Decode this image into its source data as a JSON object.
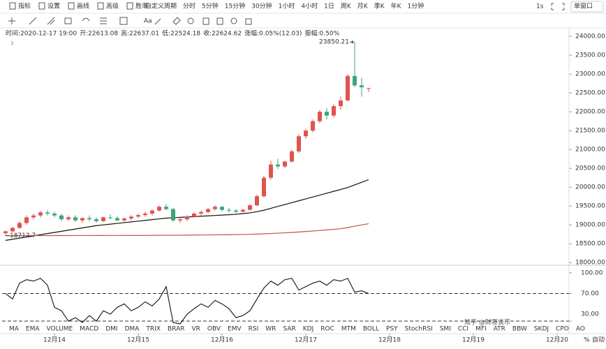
{
  "toolbar": {
    "tools": [
      "指标",
      "设置",
      "画线",
      "高级",
      "胜率"
    ],
    "periods": [
      "自定义周期",
      "分时",
      "5分钟",
      "15分钟",
      "30分钟",
      "1小时",
      "4小时",
      "1日",
      "周K",
      "月K",
      "季K",
      "年K",
      "1分钟"
    ],
    "active_period": "1小时",
    "right": [
      "1s",
      "单窗口"
    ]
  },
  "info": [
    "时间:2020-12-17 19:00",
    "开:22613.08",
    "高:22637.01",
    "低:22524.18",
    "收:22624.62",
    "涨幅:0.05%(12.03)",
    "振幅:0.50%"
  ],
  "chart_data": {
    "type": "candlestick",
    "ohlc": [
      [
        18780,
        18850,
        18712.7,
        18830
      ],
      [
        18830,
        18950,
        18800,
        18920
      ],
      [
        18920,
        19100,
        18900,
        19050
      ],
      [
        19050,
        19250,
        19000,
        19200
      ],
      [
        19200,
        19300,
        19150,
        19250
      ],
      [
        19250,
        19380,
        19200,
        19330
      ],
      [
        19330,
        19400,
        19250,
        19300
      ],
      [
        19300,
        19350,
        19200,
        19250
      ],
      [
        19250,
        19300,
        19100,
        19150
      ],
      [
        19150,
        19250,
        19100,
        19200
      ],
      [
        19200,
        19260,
        19080,
        19120
      ],
      [
        19120,
        19200,
        19050,
        19180
      ],
      [
        19180,
        19250,
        19100,
        19150
      ],
      [
        19150,
        19200,
        19060,
        19100
      ],
      [
        19100,
        19220,
        19080,
        19200
      ],
      [
        19200,
        19280,
        19150,
        19180
      ],
      [
        19180,
        19230,
        19100,
        19120
      ],
      [
        19120,
        19200,
        19080,
        19170
      ],
      [
        19170,
        19260,
        19120,
        19220
      ],
      [
        19220,
        19300,
        19180,
        19260
      ],
      [
        19260,
        19350,
        19220,
        19300
      ],
      [
        19300,
        19420,
        19250,
        19380
      ],
      [
        19380,
        19520,
        19350,
        19480
      ],
      [
        19480,
        19550,
        19380,
        19420
      ],
      [
        19420,
        19450,
        19080,
        19120
      ],
      [
        19120,
        19200,
        19050,
        19150
      ],
      [
        19150,
        19260,
        19100,
        19220
      ],
      [
        19220,
        19330,
        19180,
        19300
      ],
      [
        19300,
        19380,
        19250,
        19340
      ],
      [
        19340,
        19450,
        19300,
        19420
      ],
      [
        19420,
        19520,
        19380,
        19480
      ],
      [
        19480,
        19500,
        19350,
        19400
      ],
      [
        19400,
        19450,
        19320,
        19380
      ],
      [
        19380,
        19420,
        19300,
        19350
      ],
      [
        19350,
        19430,
        19330,
        19400
      ],
      [
        19400,
        19550,
        19380,
        19520
      ],
      [
        19520,
        19800,
        19500,
        19760
      ],
      [
        19760,
        20300,
        19720,
        20250
      ],
      [
        20250,
        20700,
        20200,
        20600
      ],
      [
        20600,
        20750,
        20480,
        20550
      ],
      [
        20550,
        20700,
        20500,
        20680
      ],
      [
        20680,
        21000,
        20650,
        20950
      ],
      [
        20950,
        21400,
        20900,
        21350
      ],
      [
        21350,
        21550,
        21280,
        21500
      ],
      [
        21500,
        21800,
        21450,
        21750
      ],
      [
        21750,
        22050,
        21700,
        22000
      ],
      [
        22000,
        22100,
        21800,
        21900
      ],
      [
        21900,
        22200,
        21850,
        22150
      ],
      [
        22150,
        22400,
        22050,
        22300
      ],
      [
        22300,
        23000,
        22280,
        22950
      ],
      [
        22950,
        23850.21,
        22650,
        22700
      ],
      [
        22700,
        22900,
        22400,
        22650
      ],
      [
        22613.08,
        22637.01,
        22524.18,
        22624.62
      ]
    ],
    "up_color": "#e0534f",
    "down_color": "#3aa57a",
    "lines": [
      {
        "color": "#111111",
        "values": [
          18590,
          18620,
          18650,
          18680,
          18710,
          18740,
          18770,
          18800,
          18830,
          18860,
          18890,
          18920,
          18950,
          18980,
          19000,
          19020,
          19040,
          19060,
          19080,
          19100,
          19120,
          19140,
          19160,
          19180,
          19190,
          19200,
          19210,
          19220,
          19230,
          19240,
          19250,
          19260,
          19270,
          19280,
          19300,
          19320,
          19350,
          19390,
          19440,
          19490,
          19540,
          19590,
          19640,
          19690,
          19740,
          19790,
          19840,
          19890,
          19940,
          19990,
          20060,
          20130,
          20200
        ]
      },
      {
        "color": "#c0504d",
        "values": [
          18715,
          18715,
          18715,
          18715,
          18716,
          18716,
          18716,
          18717,
          18717,
          18717,
          18718,
          18718,
          18718,
          18719,
          18719,
          18720,
          18720,
          18721,
          18721,
          18722,
          18722,
          18723,
          18724,
          18725,
          18726,
          18727,
          18728,
          18730,
          18732,
          18734,
          18736,
          18738,
          18740,
          18743,
          18746,
          18750,
          18756,
          18763,
          18771,
          18780,
          18790,
          18800,
          18812,
          18825,
          18838,
          18852,
          18867,
          18882,
          18898,
          18930,
          18965,
          19000,
          19030
        ]
      }
    ],
    "ylim": [
      17930,
      24150
    ],
    "yticks": [
      {
        "value": 18000,
        "label": "18000.00"
      },
      {
        "value": 18500,
        "label": "18500.00"
      },
      {
        "value": 19000,
        "label": "19000.00"
      },
      {
        "value": 19500,
        "label": "19500.00"
      },
      {
        "value": 20000,
        "label": "20000.00"
      },
      {
        "value": 20500,
        "label": "20500.00"
      },
      {
        "value": 21000,
        "label": "21000.00"
      },
      {
        "value": 21500,
        "label": "21500.00"
      },
      {
        "value": 22000,
        "label": "22000.00"
      },
      {
        "value": 22500,
        "label": "22500.00"
      },
      {
        "value": 23000,
        "label": "23000.00"
      },
      {
        "value": 23500,
        "label": "23500.00"
      },
      {
        "value": 24000,
        "label": "24000.00"
      }
    ],
    "xlim": [
      -0.5,
      80.2
    ],
    "xticks": [
      {
        "value": 7,
        "label": "12月14"
      },
      {
        "value": 19,
        "label": "12月15"
      },
      {
        "value": 31,
        "label": "12月16"
      },
      {
        "value": 43,
        "label": "12月17"
      },
      {
        "value": 55,
        "label": "12月18"
      },
      {
        "value": 67,
        "label": "12月19"
      },
      {
        "value": 79,
        "label": "12月20"
      }
    ],
    "rsi": {
      "color": "#111111",
      "values": [
        70,
        62,
        85,
        90,
        88,
        92,
        82,
        50,
        45,
        30,
        35,
        28,
        38,
        30,
        45,
        40,
        50,
        55,
        45,
        50,
        58,
        52,
        62,
        80,
        28,
        26,
        40,
        48,
        55,
        50,
        60,
        55,
        48,
        35,
        38,
        45,
        62,
        78,
        88,
        82,
        90,
        92,
        75,
        80,
        85,
        88,
        82,
        90,
        88,
        92,
        72,
        74,
        70
      ],
      "ylim": [
        28,
        111
      ],
      "yticks": [
        {
          "value": 100,
          "label": "100.00"
        },
        {
          "value": 70,
          "label": "70.00"
        },
        {
          "value": 30,
          "label": "30.00"
        }
      ],
      "reference_lines": [
        70,
        30
      ]
    }
  },
  "indicators": [
    "MA",
    "EMA",
    "VOLUME",
    "MACD",
    "DMI",
    "DMA",
    "TRIX",
    "BRAR",
    "VR",
    "OBV",
    "EMV",
    "RSI",
    "WR",
    "SAR",
    "KDJ",
    "ROC",
    "MTM",
    "BOLL",
    "PSY",
    "StochRSI",
    "SMI",
    "CCI",
    "MFI",
    "ATR",
    "BBW",
    "SKDJ",
    "CPO",
    "AO"
  ],
  "active_indicator": "RSI",
  "axis_controls": [
    "%",
    "自动"
  ],
  "watermark": "知乎 @财哥谈币"
}
